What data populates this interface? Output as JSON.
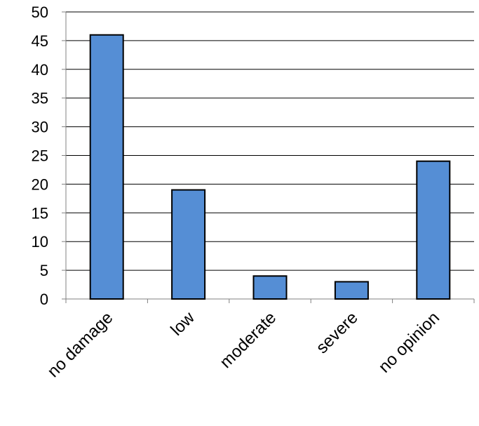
{
  "chart_data": {
    "type": "bar",
    "categories": [
      "no damage",
      "low",
      "moderate",
      "severe",
      "no opinion"
    ],
    "values": [
      46,
      19,
      4,
      3,
      24
    ],
    "title": "",
    "xlabel": "",
    "ylabel": "",
    "ylim": [
      0,
      50
    ],
    "yticks": [
      0,
      5,
      10,
      15,
      20,
      25,
      30,
      35,
      40,
      45,
      50
    ],
    "grid": true,
    "legend": "none",
    "colors": {
      "bar_fill": "#558ed5",
      "bar_stroke": "#000000",
      "grid": "#000000",
      "axis": "#808080"
    }
  }
}
